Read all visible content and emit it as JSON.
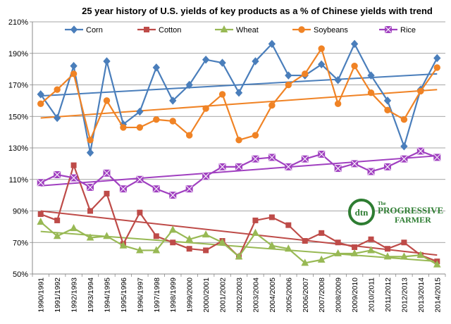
{
  "chart_data": {
    "type": "line",
    "title": "25 year history of U.S. yields of key products as a % of Chinese yields with trend",
    "xlabel": "",
    "ylabel": "",
    "ylim": [
      50,
      210
    ],
    "yticks": [
      50,
      70,
      90,
      110,
      130,
      150,
      170,
      190,
      210
    ],
    "ytick_suffix": "%",
    "grid": "horizontal",
    "legend_position": "top",
    "categories": [
      "1990/1991",
      "1991/1992",
      "1992/1993",
      "1993/1994",
      "1994/1995",
      "1995/1996",
      "1996/1997",
      "1997/1998",
      "1998/1999",
      "1999/2000",
      "2000/2001",
      "2001/2002",
      "2002/2003",
      "2003/2004",
      "2004/2005",
      "2005/2006",
      "2006/2007",
      "2007/2008",
      "2008/2009",
      "2009/2010",
      "2010/2011",
      "2011/2012",
      "2012/2013",
      "2013/2014",
      "2014/2015"
    ],
    "series": [
      {
        "name": "Corn",
        "color": "#4a7ebb",
        "marker": "diamond",
        "values": [
          164,
          149,
          182,
          127,
          185,
          145,
          153,
          181,
          160,
          170,
          186,
          184,
          165,
          185,
          196,
          176,
          176,
          183,
          173,
          196,
          176,
          160,
          131,
          167,
          187
        ],
        "trend": [
          163,
          177
        ]
      },
      {
        "name": "Cotton",
        "color": "#be4b48",
        "marker": "square",
        "values": [
          88,
          84,
          119,
          90,
          101,
          69,
          89,
          74,
          70,
          66,
          65,
          71,
          61,
          84,
          86,
          81,
          71,
          76,
          70,
          67,
          72,
          66,
          70,
          62,
          58
        ],
        "trend": [
          90,
          62
        ]
      },
      {
        "name": "Wheat",
        "color": "#98b954",
        "marker": "triangle",
        "values": [
          83,
          74,
          79,
          73,
          74,
          68,
          65,
          65,
          78,
          72,
          75,
          70,
          61,
          76,
          68,
          66,
          57,
          59,
          63,
          63,
          65,
          61,
          61,
          62,
          56
        ],
        "trend": [
          77,
          58
        ]
      },
      {
        "name": "Soybeans",
        "color": "#f08325",
        "marker": "circle",
        "values": [
          158,
          167,
          177,
          135,
          160,
          143,
          143,
          148,
          147,
          138,
          155,
          164,
          135,
          138,
          157,
          170,
          177,
          193,
          158,
          182,
          165,
          154,
          148,
          166,
          181
        ],
        "trend": [
          149,
          167
        ]
      },
      {
        "name": "Rice",
        "color": "#a040c0",
        "marker": "square-x",
        "values": [
          108,
          113,
          111,
          105,
          114,
          104,
          110,
          104,
          100,
          104,
          112,
          118,
          118,
          123,
          124,
          118,
          123,
          126,
          117,
          120,
          115,
          118,
          123,
          128,
          124
        ],
        "trend": [
          106,
          125
        ]
      }
    ]
  },
  "logo": {
    "mark": "dtn",
    "line1": "The",
    "line2": "PROGRESSIVE",
    "line3": "FARMER"
  }
}
